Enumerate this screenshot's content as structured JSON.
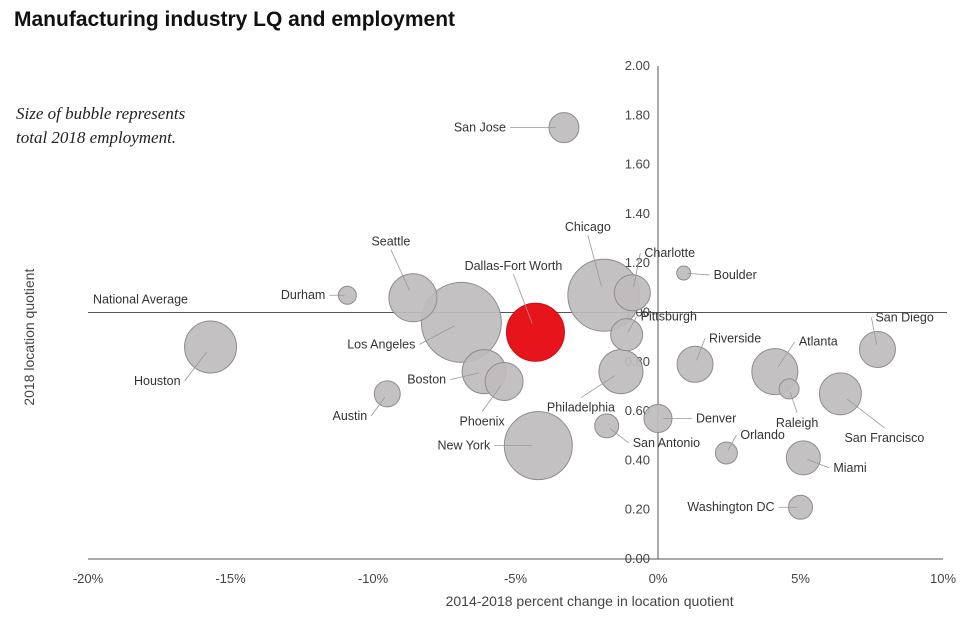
{
  "title": "Manufacturing industry LQ and employment",
  "note": "Size of bubble represents total 2018 employment.",
  "chart_data": {
    "type": "scatter",
    "title": "Manufacturing industry LQ and employment",
    "xlabel": "2014-2018 percent change in location quotient",
    "ylabel": "2018 location quotient",
    "xlim": [
      -20,
      10
    ],
    "ylim": [
      0,
      2
    ],
    "x_ticks": [
      "-20%",
      "-15%",
      "-10%",
      "-5%",
      "0%",
      "5%",
      "10%"
    ],
    "y_ticks": [
      "0.00",
      "0.20",
      "0.40",
      "0.60",
      "0.80",
      "1.00",
      "1.20",
      "1.40",
      "1.60",
      "1.80",
      "2.00"
    ],
    "reference_line": {
      "label": "National Average",
      "y": 1.0
    },
    "highlight_color": "#e8141b",
    "bubble_color": "#bfbcbd",
    "points": [
      {
        "name": "San Jose",
        "x": -3.3,
        "y": 1.75,
        "size": 15
      },
      {
        "name": "Chicago",
        "x": -1.9,
        "y": 1.07,
        "size": 36
      },
      {
        "name": "Charlotte",
        "x": -0.9,
        "y": 1.08,
        "size": 18
      },
      {
        "name": "Boulder",
        "x": 0.9,
        "y": 1.16,
        "size": 7
      },
      {
        "name": "Dallas-Fort Worth",
        "x": -4.3,
        "y": 0.92,
        "size": 29,
        "highlight": true
      },
      {
        "name": "Seattle",
        "x": -8.6,
        "y": 1.06,
        "size": 24
      },
      {
        "name": "Durham",
        "x": -10.9,
        "y": 1.07,
        "size": 9
      },
      {
        "name": "Los Angeles",
        "x": -6.9,
        "y": 0.96,
        "size": 40
      },
      {
        "name": "Pittsburgh",
        "x": -1.1,
        "y": 0.91,
        "size": 16
      },
      {
        "name": "Riverside",
        "x": 1.3,
        "y": 0.79,
        "size": 18
      },
      {
        "name": "Atlanta",
        "x": 4.1,
        "y": 0.76,
        "size": 23
      },
      {
        "name": "San Diego",
        "x": 7.7,
        "y": 0.85,
        "size": 18
      },
      {
        "name": "Houston",
        "x": -15.7,
        "y": 0.86,
        "size": 26
      },
      {
        "name": "Boston",
        "x": -6.1,
        "y": 0.76,
        "size": 22
      },
      {
        "name": "Phoenix",
        "x": -5.4,
        "y": 0.72,
        "size": 19
      },
      {
        "name": "Philadelphia",
        "x": -1.3,
        "y": 0.76,
        "size": 22
      },
      {
        "name": "Austin",
        "x": -9.5,
        "y": 0.67,
        "size": 13
      },
      {
        "name": "Raleigh",
        "x": 4.6,
        "y": 0.69,
        "size": 10
      },
      {
        "name": "San Francisco",
        "x": 6.4,
        "y": 0.67,
        "size": 21
      },
      {
        "name": "Denver",
        "x": 0.0,
        "y": 0.57,
        "size": 14
      },
      {
        "name": "San Antonio",
        "x": -1.8,
        "y": 0.54,
        "size": 12
      },
      {
        "name": "New York",
        "x": -4.2,
        "y": 0.46,
        "size": 34
      },
      {
        "name": "Orlando",
        "x": 2.4,
        "y": 0.43,
        "size": 11
      },
      {
        "name": "Miami",
        "x": 5.1,
        "y": 0.41,
        "size": 17
      },
      {
        "name": "Washington DC",
        "x": 5.0,
        "y": 0.21,
        "size": 12
      }
    ]
  }
}
